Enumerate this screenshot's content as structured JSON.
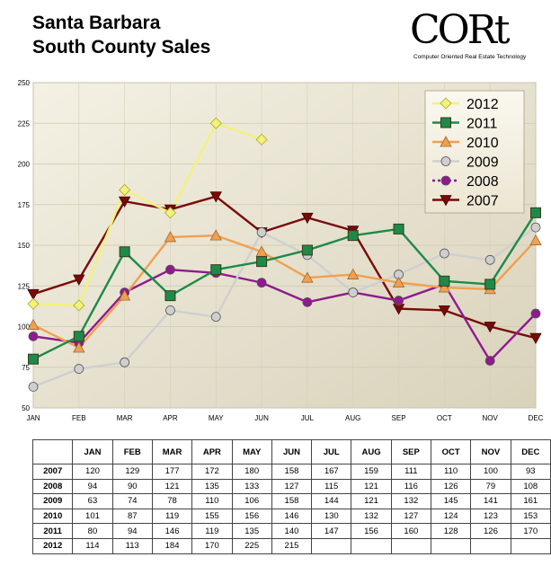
{
  "title_line1": "Santa Barbara",
  "title_line2": "South County Sales",
  "logo": {
    "text": "CORt",
    "tagline": "Computer Oriented Real Estate Technology"
  },
  "chart_data": {
    "type": "line",
    "categories": [
      "JAN",
      "FEB",
      "MAR",
      "APR",
      "MAY",
      "JUN",
      "JUL",
      "AUG",
      "SEP",
      "OCT",
      "NOV",
      "DEC"
    ],
    "ylim": [
      50,
      250
    ],
    "yticks": [
      50,
      75,
      100,
      125,
      150,
      175,
      200,
      225,
      250
    ],
    "grid": true,
    "legend_position": "top-right",
    "series": [
      {
        "name": "2007",
        "color": "#7a0a0a",
        "marker": "triangle-down",
        "values": [
          120,
          129,
          177,
          172,
          180,
          158,
          167,
          159,
          111,
          110,
          100,
          93
        ]
      },
      {
        "name": "2008",
        "color": "#8e1a8e",
        "marker": "circle",
        "values": [
          94,
          90,
          121,
          135,
          133,
          127,
          115,
          121,
          116,
          126,
          79,
          108
        ]
      },
      {
        "name": "2009",
        "color": "#cfcfcf",
        "marker": "circle",
        "values": [
          63,
          74,
          78,
          110,
          106,
          158,
          144,
          121,
          132,
          145,
          141,
          161
        ]
      },
      {
        "name": "2010",
        "color": "#f0a050",
        "marker": "triangle-up",
        "values": [
          101,
          87,
          119,
          155,
          156,
          146,
          130,
          132,
          127,
          124,
          123,
          153
        ]
      },
      {
        "name": "2011",
        "color": "#1e8a4a",
        "marker": "square",
        "values": [
          80,
          94,
          146,
          119,
          135,
          140,
          147,
          156,
          160,
          128,
          126,
          170
        ]
      },
      {
        "name": "2012",
        "color": "#f2f27a",
        "marker": "diamond",
        "values": [
          114,
          113,
          184,
          170,
          225,
          215,
          null,
          null,
          null,
          null,
          null,
          null
        ]
      }
    ],
    "legend_order": [
      "2012",
      "2011",
      "2010",
      "2009",
      "2008",
      "2007"
    ]
  },
  "table": {
    "headers": [
      "",
      "JAN",
      "FEB",
      "MAR",
      "APR",
      "MAY",
      "JUN",
      "JUL",
      "AUG",
      "SEP",
      "OCT",
      "NOV",
      "DEC"
    ],
    "rows": [
      [
        "2007",
        "120",
        "129",
        "177",
        "172",
        "180",
        "158",
        "167",
        "159",
        "111",
        "110",
        "100",
        "93"
      ],
      [
        "2008",
        "94",
        "90",
        "121",
        "135",
        "133",
        "127",
        "115",
        "121",
        "116",
        "126",
        "79",
        "108"
      ],
      [
        "2009",
        "63",
        "74",
        "78",
        "110",
        "106",
        "158",
        "144",
        "121",
        "132",
        "145",
        "141",
        "161"
      ],
      [
        "2010",
        "101",
        "87",
        "119",
        "155",
        "156",
        "146",
        "130",
        "132",
        "127",
        "124",
        "123",
        "153"
      ],
      [
        "2011",
        "80",
        "94",
        "146",
        "119",
        "135",
        "140",
        "147",
        "156",
        "160",
        "128",
        "126",
        "170"
      ],
      [
        "2012",
        "114",
        "113",
        "184",
        "170",
        "225",
        "215",
        "",
        "",
        "",
        "",
        "",
        ""
      ]
    ]
  }
}
